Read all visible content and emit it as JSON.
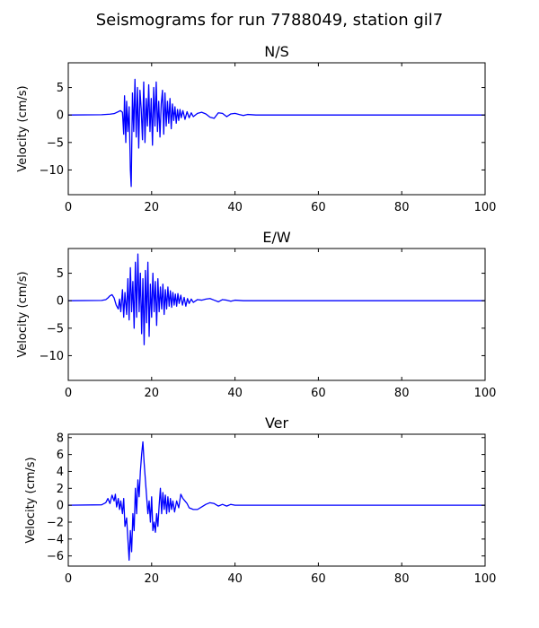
{
  "figure": {
    "title": "Seismograms for run 7788049, station gil7",
    "line_color": "#0000ff",
    "background": "#ffffff"
  },
  "chart_data": [
    {
      "type": "line",
      "title": "N/S",
      "xlabel": "",
      "ylabel": "Velocity (cm/s)",
      "xlim": [
        0,
        100
      ],
      "ylim": [
        -14.5,
        9.5
      ],
      "xticks": [
        0,
        20,
        40,
        60,
        80,
        100
      ],
      "yticks": [
        5,
        0,
        -5,
        -10
      ],
      "grid": false,
      "series": [
        {
          "x": [
            0,
            8,
            10,
            11,
            12,
            12.5,
            13,
            13.3,
            13.5,
            13.8,
            14,
            14.3,
            14.6,
            14.9,
            15.1,
            15.4,
            15.7,
            16,
            16.3,
            16.6,
            16.9,
            17.2,
            17.5,
            17.8,
            18.1,
            18.4,
            18.7,
            19,
            19.3,
            19.6,
            19.9,
            20.2,
            20.5,
            20.8,
            21.1,
            21.4,
            21.7,
            22,
            22.3,
            22.6,
            22.9,
            23.2,
            23.5,
            23.8,
            24.1,
            24.4,
            24.7,
            25,
            25.3,
            25.6,
            25.9,
            26.2,
            26.5,
            26.8,
            27.1,
            27.5,
            28,
            28.5,
            29,
            29.5,
            30,
            31,
            32,
            33,
            34,
            35,
            36,
            37,
            38,
            39,
            40,
            41,
            42,
            43,
            45,
            60,
            80,
            100
          ],
          "y": [
            0,
            0.05,
            0.15,
            0.25,
            0.6,
            0.8,
            0.5,
            -3.5,
            3.5,
            -5,
            2.5,
            -3,
            1.5,
            -10,
            -13,
            4,
            -3,
            6.5,
            -4,
            5,
            -6,
            4.5,
            1,
            -4.5,
            6,
            -5,
            3,
            -2,
            5.5,
            -3,
            3,
            -5.5,
            5,
            -2,
            6,
            -3,
            2.5,
            -4,
            2,
            4.5,
            -3.5,
            4,
            -2,
            2.5,
            -1.5,
            3,
            -2.5,
            2,
            -1,
            1.5,
            -1.5,
            1,
            -1,
            1,
            -0.5,
            0.8,
            -0.8,
            0.6,
            -0.5,
            0.4,
            -0.3,
            0.3,
            0.5,
            0.2,
            -0.4,
            -0.6,
            0.4,
            0.3,
            -0.3,
            0.2,
            0.3,
            0.1,
            -0.1,
            0.1,
            0,
            0,
            0,
            0
          ]
        }
      ]
    },
    {
      "type": "line",
      "title": "E/W",
      "xlabel": "",
      "ylabel": "Velocity (cm/s)",
      "xlim": [
        0,
        100
      ],
      "ylim": [
        -14.5,
        9.5
      ],
      "xticks": [
        0,
        20,
        40,
        60,
        80,
        100
      ],
      "yticks": [
        5,
        0,
        -5,
        -10
      ],
      "grid": false,
      "series": [
        {
          "x": [
            0,
            8,
            9,
            9.5,
            10,
            10.5,
            11,
            11.5,
            12,
            12.3,
            12.6,
            13,
            13.3,
            13.6,
            14,
            14.3,
            14.6,
            14.9,
            15.2,
            15.5,
            15.8,
            16.1,
            16.4,
            16.7,
            17,
            17.3,
            17.6,
            17.9,
            18.2,
            18.5,
            18.8,
            19.1,
            19.4,
            19.7,
            20,
            20.3,
            20.6,
            20.9,
            21.2,
            21.5,
            21.8,
            22.1,
            22.4,
            22.7,
            23,
            23.3,
            23.6,
            23.9,
            24.2,
            24.5,
            24.8,
            25.1,
            25.4,
            25.7,
            26,
            26.3,
            26.6,
            27,
            27.4,
            27.8,
            28.2,
            28.6,
            29,
            29.5,
            30,
            31,
            32,
            33,
            34,
            35,
            36,
            37,
            38,
            39,
            40,
            42,
            45,
            60,
            80,
            100
          ],
          "y": [
            0,
            0.05,
            0.2,
            0.5,
            0.9,
            1.1,
            0.5,
            -0.8,
            -1.5,
            0.3,
            -2,
            2,
            -3,
            1.5,
            -2.5,
            4,
            -3.5,
            6,
            -2,
            3.5,
            -5,
            7,
            -3,
            8.5,
            -2,
            5,
            -6,
            4,
            -8,
            5.5,
            -4,
            7,
            -6.5,
            3,
            -3,
            5,
            -2,
            3.5,
            -4.5,
            4,
            -2,
            2.5,
            -1.5,
            3,
            -2.5,
            2,
            -1.5,
            2.5,
            -1,
            1.8,
            -1.2,
            1.5,
            -0.8,
            1.2,
            -1,
            1.3,
            -0.5,
            1,
            -0.8,
            0.6,
            -1,
            0.4,
            -0.5,
            0.3,
            -0.3,
            0.2,
            0.1,
            0.3,
            0.4,
            0.1,
            -0.2,
            0.2,
            0.1,
            -0.1,
            0.1,
            0,
            0,
            0,
            0,
            0
          ]
        }
      ]
    },
    {
      "type": "line",
      "title": "Ver",
      "xlabel": "",
      "ylabel": "Velocity (cm/s)",
      "xlim": [
        0,
        100
      ],
      "ylim": [
        -7.2,
        8.4
      ],
      "xticks": [
        0,
        20,
        40,
        60,
        80,
        100
      ],
      "yticks": [
        8,
        6,
        4,
        2,
        0,
        -2,
        -4,
        -6
      ],
      "grid": false,
      "series": [
        {
          "x": [
            0,
            8,
            9,
            9.5,
            10,
            10.5,
            11,
            11.3,
            11.6,
            12,
            12.3,
            12.6,
            13,
            13.3,
            13.6,
            14,
            14.3,
            14.6,
            14.9,
            15.2,
            15.5,
            15.8,
            16.1,
            16.4,
            16.7,
            17,
            17.3,
            17.6,
            17.9,
            18.2,
            18.5,
            18.8,
            19.1,
            19.4,
            19.7,
            20,
            20.3,
            20.6,
            20.9,
            21.2,
            21.5,
            21.8,
            22.1,
            22.4,
            22.7,
            23,
            23.3,
            23.6,
            23.9,
            24.2,
            24.5,
            24.8,
            25.1,
            25.5,
            26,
            26.5,
            27,
            27.5,
            28,
            28.5,
            29,
            30,
            31,
            32,
            33,
            34,
            35,
            36,
            37,
            38,
            39,
            40,
            42,
            45,
            60,
            80,
            100
          ],
          "y": [
            0,
            0.05,
            0.3,
            0.8,
            0.2,
            1.2,
            0.5,
            1.3,
            -0.2,
            0.8,
            -0.5,
            0.5,
            -1,
            0.8,
            -2.5,
            -1.5,
            -4,
            -6.5,
            -3,
            -5.5,
            -1,
            -3,
            2,
            -1,
            3,
            1,
            4,
            6,
            7.5,
            5,
            3,
            1,
            -1,
            0.5,
            -2,
            1,
            -3,
            -2,
            -3.2,
            -1,
            -2.5,
            0,
            2,
            -1,
            1.5,
            -0.5,
            1.2,
            -1,
            1,
            -0.8,
            0.8,
            -0.5,
            0.5,
            -0.8,
            0.5,
            -0.3,
            1.3,
            0.8,
            0.5,
            0.2,
            -0.3,
            -0.5,
            -0.5,
            -0.2,
            0.1,
            0.3,
            0.2,
            -0.1,
            0.1,
            -0.1,
            0.1,
            0,
            0,
            0,
            0,
            0,
            0
          ]
        }
      ]
    }
  ]
}
